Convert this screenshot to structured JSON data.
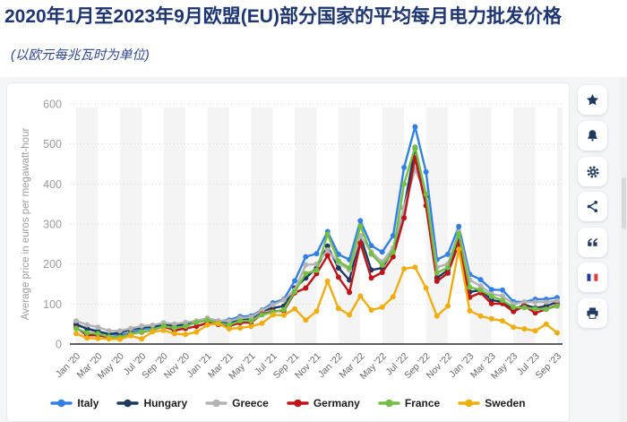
{
  "header": {
    "title": "2020年1月至2023年9月欧盟(EU)部分国家的平均每月电力批发价格",
    "subtitle": "(以欧元每兆瓦时为单位)"
  },
  "side_buttons": [
    {
      "id": "favorite",
      "icon": "star-icon"
    },
    {
      "id": "alert",
      "icon": "bell-icon"
    },
    {
      "id": "settings",
      "icon": "gear-icon"
    },
    {
      "id": "share",
      "icon": "share-icon"
    },
    {
      "id": "citation",
      "icon": "quote-icon"
    },
    {
      "id": "language",
      "icon": "french-flag-icon"
    },
    {
      "id": "print",
      "icon": "printer-icon"
    }
  ],
  "chart_data": {
    "type": "line",
    "title": "",
    "xlabel": "",
    "ylabel": "Average price in euros per megawatt-hour",
    "ylim": [
      0,
      600
    ],
    "ytick_step": 100,
    "grid": "horizontal-dotted",
    "background_bands": "alternating-2-month-vertical-stripes",
    "legend_position": "bottom",
    "x_tick_every": 2,
    "x": [
      "Jan '20",
      "Feb '20",
      "Mar '20",
      "Apr '20",
      "May '20",
      "Jun '20",
      "Jul '20",
      "Aug '20",
      "Sep '20",
      "Oct '20",
      "Nov '20",
      "Dec '20",
      "Jan '21",
      "Feb '21",
      "Mar '21",
      "Apr '21",
      "May '21",
      "Jun '21",
      "Jul '21",
      "Aug '21",
      "Sep '21",
      "Oct '21",
      "Nov '21",
      "Dec '21",
      "Jan '22",
      "Feb '22",
      "Mar '22",
      "Apr '22",
      "May '22",
      "Jun '22",
      "Jul '22",
      "Aug '22",
      "Sep '22",
      "Oct '22",
      "Nov '22",
      "Dec '22",
      "Jan '23",
      "Feb '23",
      "Mar '23",
      "Apr '23",
      "May '23",
      "Jun '23",
      "Jul '23",
      "Aug '23",
      "Sep '23"
    ],
    "series": [
      {
        "name": "Italy",
        "color": "#3080e8",
        "values": [
          47,
          39,
          32,
          25,
          22,
          28,
          38,
          40,
          48,
          44,
          48,
          54,
          61,
          57,
          60,
          69,
          70,
          85,
          103,
          112,
          158,
          218,
          226,
          281,
          224,
          211,
          308,
          246,
          230,
          271,
          441,
          543,
          430,
          211,
          224,
          294,
          174,
          161,
          136,
          135,
          106,
          105,
          112,
          112,
          116
        ]
      },
      {
        "name": "Hungary",
        "color": "#1b3a5f",
        "values": [
          50,
          38,
          31,
          25,
          28,
          36,
          42,
          44,
          48,
          46,
          50,
          54,
          60,
          54,
          52,
          62,
          63,
          82,
          90,
          95,
          140,
          165,
          190,
          245,
          190,
          160,
          270,
          185,
          190,
          235,
          340,
          490,
          370,
          165,
          185,
          265,
          130,
          135,
          110,
          105,
          85,
          98,
          90,
          95,
          105
        ]
      },
      {
        "name": "Greece",
        "color": "#b3b3b3",
        "values": [
          58,
          48,
          42,
          33,
          33,
          39,
          45,
          47,
          53,
          50,
          54,
          58,
          65,
          58,
          57,
          65,
          67,
          84,
          98,
          110,
          135,
          198,
          200,
          235,
          203,
          185,
          270,
          230,
          205,
          240,
          342,
          436,
          375,
          192,
          200,
          280,
          160,
          145,
          125,
          120,
          100,
          105,
          105,
          105,
          108
        ]
      },
      {
        "name": "Germany",
        "color": "#c01418",
        "values": [
          41,
          22,
          22,
          17,
          17,
          26,
          30,
          35,
          44,
          34,
          39,
          44,
          53,
          49,
          45,
          53,
          54,
          75,
          82,
          83,
          128,
          140,
          176,
          221,
          167,
          129,
          252,
          165,
          179,
          218,
          315,
          465,
          346,
          157,
          177,
          251,
          117,
          128,
          101,
          101,
          81,
          95,
          78,
          87,
          97
        ]
      },
      {
        "name": "France",
        "color": "#72bf44",
        "values": [
          39,
          28,
          26,
          18,
          17,
          25,
          31,
          35,
          45,
          40,
          44,
          54,
          60,
          52,
          48,
          58,
          58,
          73,
          80,
          86,
          131,
          176,
          184,
          275,
          207,
          190,
          295,
          225,
          197,
          230,
          400,
          492,
          374,
          178,
          191,
          276,
          142,
          135,
          119,
          109,
          92,
          91,
          88,
          87,
          95
        ]
      },
      {
        "name": "Sweden",
        "color": "#f0ad0e",
        "values": [
          26,
          15,
          14,
          13,
          12,
          21,
          13,
          31,
          34,
          26,
          24,
          30,
          48,
          51,
          38,
          40,
          44,
          52,
          73,
          72,
          88,
          60,
          82,
          157,
          89,
          73,
          120,
          85,
          92,
          118,
          188,
          192,
          140,
          70,
          95,
          237,
          83,
          70,
          63,
          58,
          42,
          38,
          33,
          50,
          28
        ]
      }
    ]
  }
}
